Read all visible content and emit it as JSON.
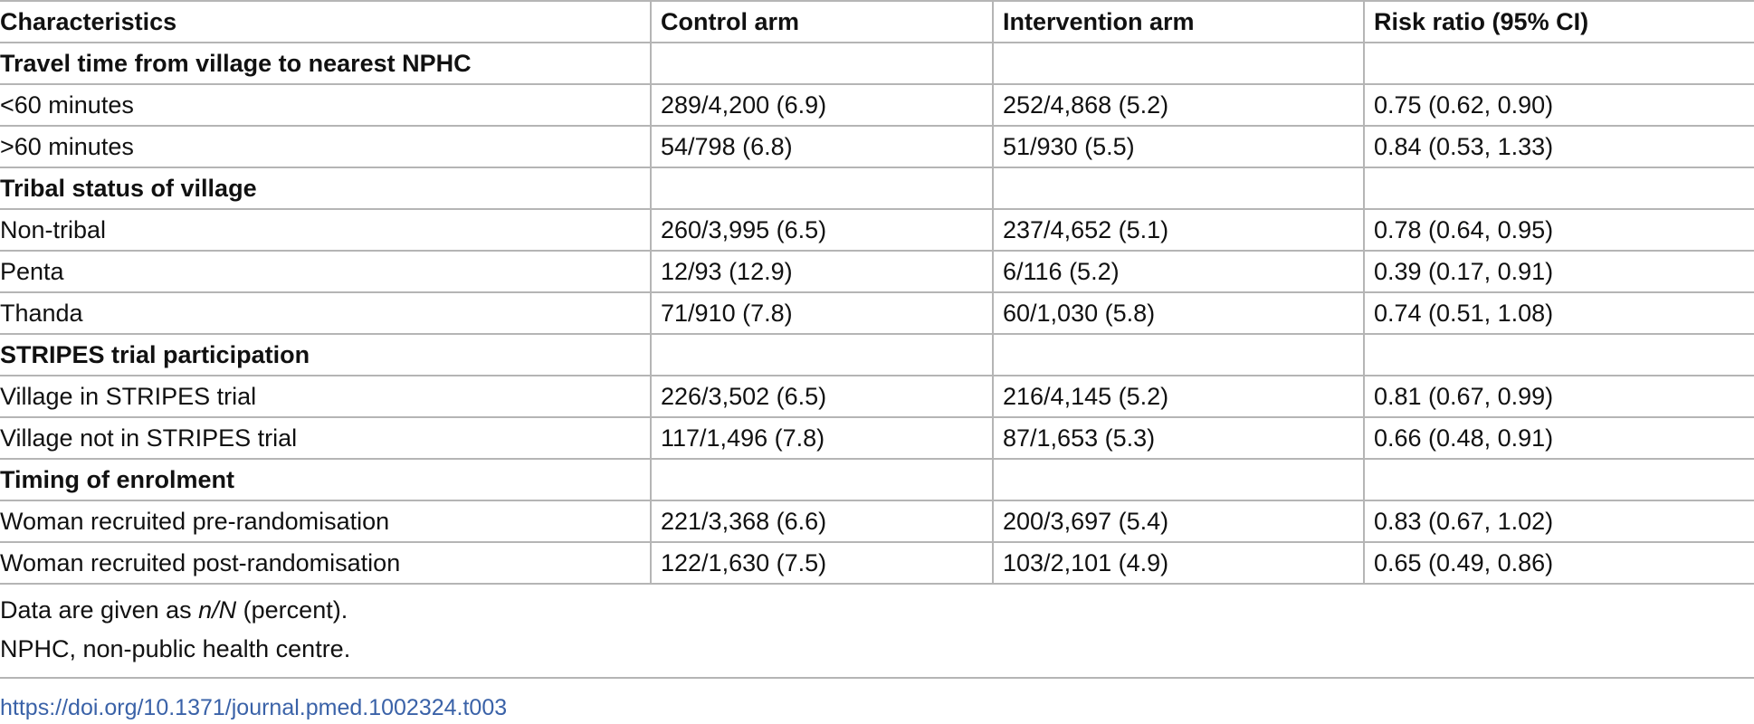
{
  "table": {
    "header": [
      "Characteristics",
      "Control arm",
      "Intervention arm",
      "Risk ratio (95% CI)"
    ],
    "sections": [
      {
        "title": "Travel time from village to nearest NPHC",
        "rows": [
          [
            "<60 minutes",
            "289/4,200 (6.9)",
            "252/4,868 (5.2)",
            "0.75 (0.62, 0.90)"
          ],
          [
            ">60 minutes",
            "54/798 (6.8)",
            "51/930 (5.5)",
            "0.84 (0.53, 1.33)"
          ]
        ]
      },
      {
        "title": "Tribal status of village",
        "rows": [
          [
            "Non-tribal",
            "260/3,995 (6.5)",
            "237/4,652 (5.1)",
            "0.78 (0.64, 0.95)"
          ],
          [
            "Penta",
            "12/93 (12.9)",
            "6/116 (5.2)",
            "0.39 (0.17, 0.91)"
          ],
          [
            "Thanda",
            "71/910 (7.8)",
            "60/1,030 (5.8)",
            "0.74 (0.51, 1.08)"
          ]
        ]
      },
      {
        "title": "STRIPES trial participation",
        "rows": [
          [
            "Village in STRIPES trial",
            "226/3,502 (6.5)",
            "216/4,145 (5.2)",
            "0.81 (0.67, 0.99)"
          ],
          [
            "Village not in STRIPES trial",
            "117/1,496 (7.8)",
            "87/1,653 (5.3)",
            "0.66 (0.48, 0.91)"
          ]
        ]
      },
      {
        "title": "Timing of enrolment",
        "rows": [
          [
            "Woman recruited pre-randomisation",
            "221/3,368 (6.6)",
            "200/3,697 (5.4)",
            "0.83 (0.67, 1.02)"
          ],
          [
            "Woman recruited post-randomisation",
            "122/1,630 (7.5)",
            "103/2,101 (4.9)",
            "0.65 (0.49, 0.86)"
          ]
        ]
      }
    ]
  },
  "footnotes": {
    "first": {
      "before": "Data are given as ",
      "italic": "n/N",
      "after": " (percent)."
    },
    "second": "NPHC, non-public health centre."
  },
  "doi": "https://doi.org/10.1371/journal.pmed.1002324.t003"
}
